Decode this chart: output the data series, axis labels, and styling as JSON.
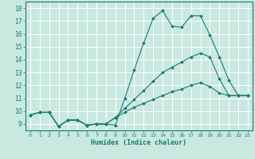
{
  "xlabel": "Humidex (Indice chaleur)",
  "xlim": [
    -0.5,
    23.5
  ],
  "ylim": [
    8.5,
    18.5
  ],
  "yticks": [
    9,
    10,
    11,
    12,
    13,
    14,
    15,
    16,
    17,
    18
  ],
  "xticks": [
    0,
    1,
    2,
    3,
    4,
    5,
    6,
    7,
    8,
    9,
    10,
    11,
    12,
    13,
    14,
    15,
    16,
    17,
    18,
    19,
    20,
    21,
    22,
    23
  ],
  "bg_color": "#c8e8e0",
  "line_color": "#1a7a6e",
  "grid_color": "#ffffff",
  "line1_x": [
    0,
    1,
    2,
    3,
    4,
    5,
    6,
    7,
    8,
    9,
    10,
    11,
    12,
    13,
    14,
    15,
    16,
    17,
    18,
    19,
    20,
    21,
    22,
    23
  ],
  "line1_y": [
    9.7,
    9.9,
    9.9,
    8.8,
    9.3,
    9.3,
    8.9,
    9.0,
    9.0,
    8.9,
    11.0,
    13.2,
    15.3,
    17.2,
    17.8,
    16.6,
    16.5,
    17.4,
    17.4,
    15.9,
    14.2,
    12.4,
    11.2,
    11.2
  ],
  "line2_x": [
    0,
    1,
    2,
    3,
    4,
    5,
    6,
    7,
    8,
    9,
    10,
    11,
    12,
    13,
    14,
    15,
    16,
    17,
    18,
    19,
    20,
    21,
    22,
    23
  ],
  "line2_y": [
    9.7,
    9.9,
    9.9,
    8.8,
    9.3,
    9.3,
    8.9,
    9.0,
    9.0,
    9.5,
    10.2,
    10.9,
    11.6,
    12.3,
    13.0,
    13.4,
    13.8,
    14.2,
    14.5,
    14.2,
    12.5,
    11.2,
    11.2,
    11.2
  ],
  "line3_x": [
    0,
    1,
    2,
    3,
    4,
    5,
    6,
    7,
    8,
    9,
    10,
    11,
    12,
    13,
    14,
    15,
    16,
    17,
    18,
    19,
    20,
    21,
    22,
    23
  ],
  "line3_y": [
    9.7,
    9.9,
    9.9,
    8.8,
    9.3,
    9.3,
    8.9,
    9.0,
    9.0,
    9.5,
    9.9,
    10.3,
    10.6,
    10.9,
    11.2,
    11.5,
    11.7,
    12.0,
    12.2,
    11.9,
    11.4,
    11.2,
    11.2,
    11.2
  ]
}
